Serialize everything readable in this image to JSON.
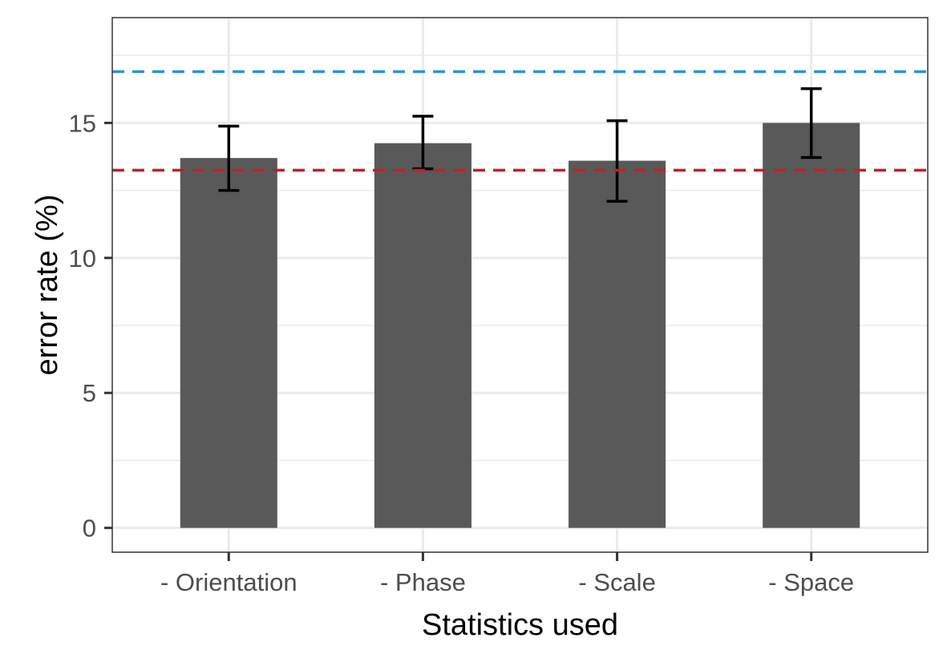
{
  "chart_data": {
    "type": "bar",
    "xlabel": "Statistics used",
    "ylabel": "error rate (%)",
    "categories": [
      "- Orientation",
      "- Phase",
      "- Scale",
      "- Space"
    ],
    "values": [
      13.7,
      14.25,
      13.6,
      15.0
    ],
    "error_low": [
      12.5,
      13.3,
      12.1,
      13.72
    ],
    "error_high": [
      14.88,
      15.25,
      15.08,
      16.27
    ],
    "ylim": [
      -0.9,
      18.9
    ],
    "yticks": [
      0,
      5,
      10,
      15
    ],
    "y_minor_ticks": [
      2.5,
      7.5,
      12.5,
      17.5
    ],
    "reference_lines": [
      {
        "value": 16.9,
        "color": "#2b93d6",
        "style": "dashed"
      },
      {
        "value": 13.25,
        "color": "#c0202a",
        "style": "dashed"
      }
    ],
    "bar_color": "#595959",
    "grid": true,
    "legend": "none"
  }
}
